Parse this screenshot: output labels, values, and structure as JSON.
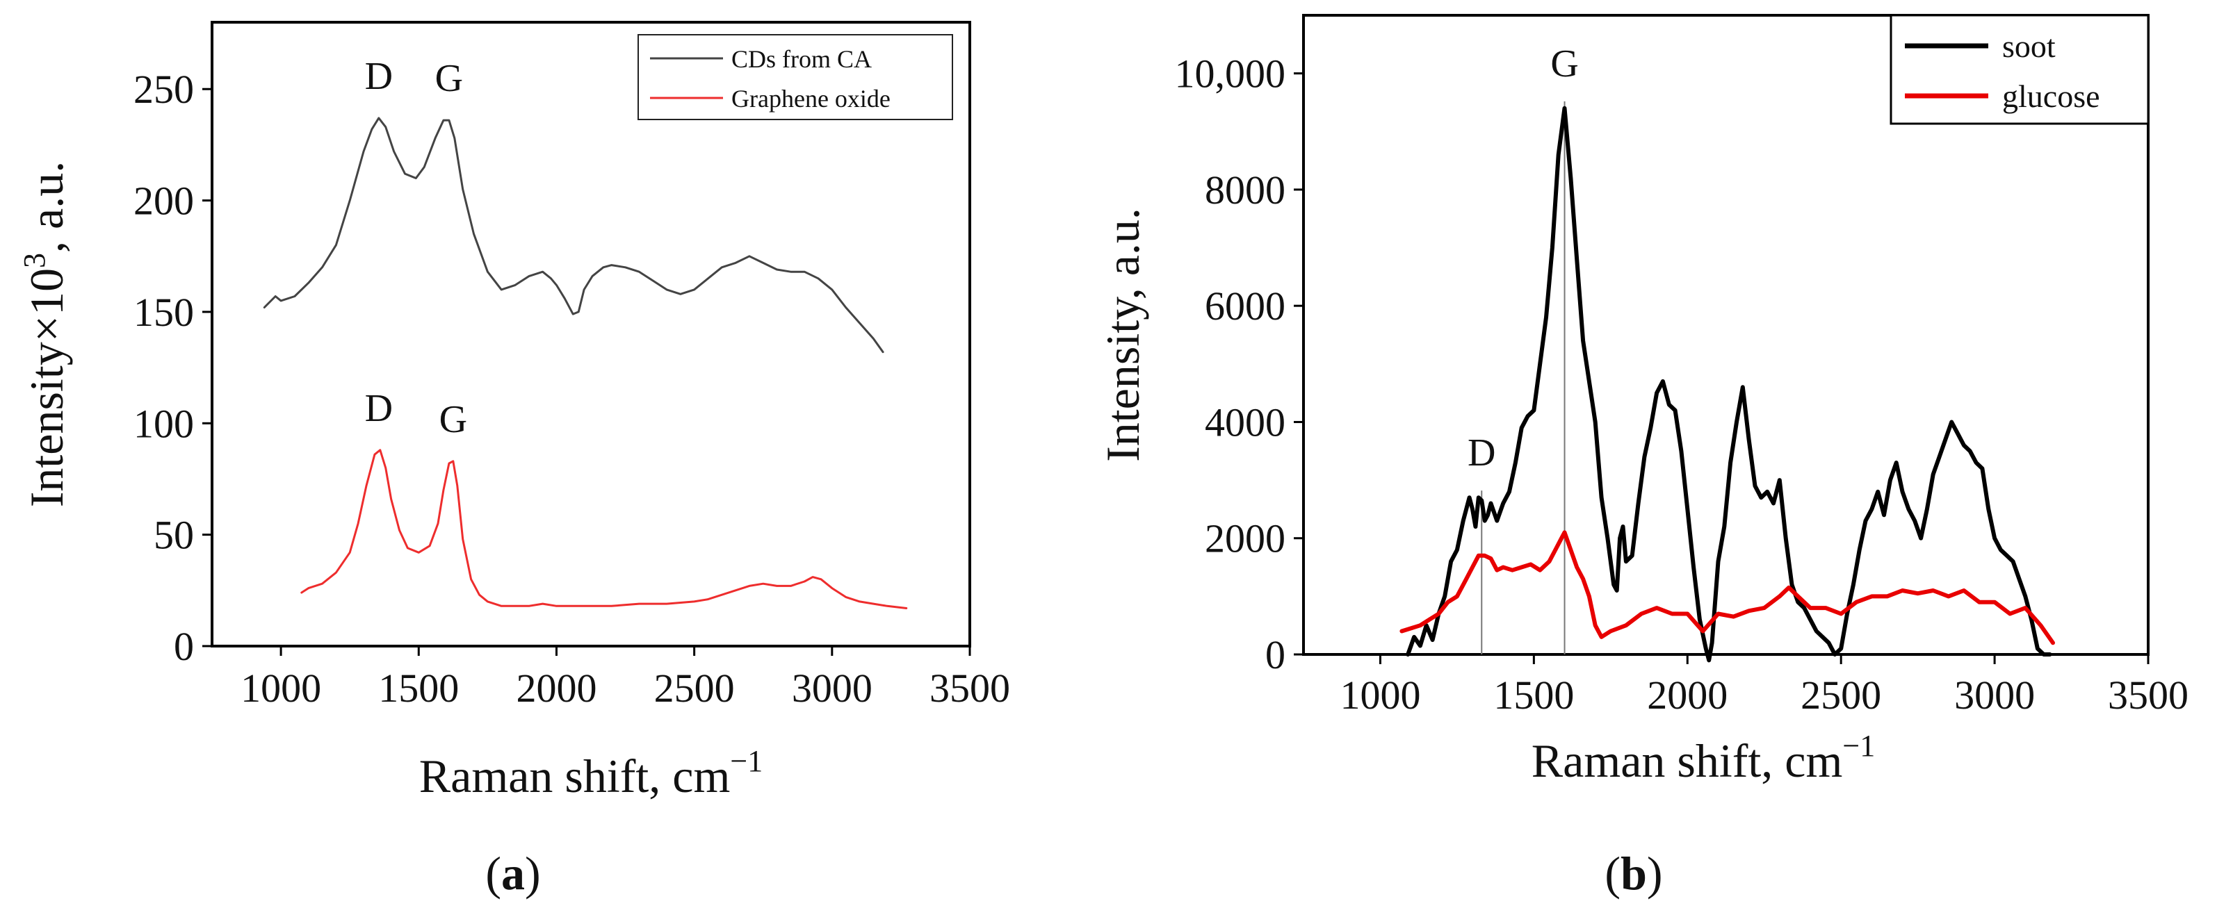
{
  "chart_data": [
    {
      "type": "line",
      "panel_label": "(a)",
      "caption_letter": "a",
      "xlabel": "Raman shift, cm",
      "xlabel_sup": "−1",
      "ylabel": "Intensity×10",
      "ylabel_sup": "3",
      "ylabel_tail": ", a.u.",
      "xlim": [
        750,
        3500
      ],
      "ylim": [
        0,
        280
      ],
      "xticks": [
        1000,
        1500,
        2000,
        2500,
        3000,
        3500
      ],
      "yticks": [
        0,
        50,
        100,
        150,
        200,
        250
      ],
      "legend_position": "top-right",
      "series": [
        {
          "name": "CDs from CA",
          "color": "#444444",
          "x": [
            940,
            980,
            1000,
            1050,
            1100,
            1150,
            1200,
            1250,
            1300,
            1330,
            1355,
            1380,
            1410,
            1450,
            1490,
            1520,
            1560,
            1590,
            1610,
            1630,
            1660,
            1700,
            1750,
            1800,
            1850,
            1900,
            1950,
            1980,
            2000,
            2030,
            2060,
            2080,
            2100,
            2130,
            2170,
            2200,
            2250,
            2300,
            2350,
            2400,
            2450,
            2500,
            2550,
            2600,
            2650,
            2700,
            2750,
            2800,
            2850,
            2900,
            2950,
            3000,
            3050,
            3100,
            3150,
            3185
          ],
          "values": [
            152,
            157,
            155,
            157,
            163,
            170,
            180,
            200,
            222,
            232,
            237,
            233,
            222,
            212,
            210,
            215,
            228,
            236,
            236,
            228,
            205,
            185,
            168,
            160,
            162,
            166,
            168,
            165,
            162,
            156,
            149,
            150,
            160,
            166,
            170,
            171,
            170,
            168,
            164,
            160,
            158,
            160,
            165,
            170,
            172,
            175,
            172,
            169,
            168,
            168,
            165,
            160,
            152,
            145,
            138,
            132
          ]
        },
        {
          "name": "Graphene oxide",
          "color": "#ee2d2d",
          "x": [
            1075,
            1100,
            1150,
            1200,
            1250,
            1280,
            1310,
            1340,
            1360,
            1380,
            1400,
            1430,
            1460,
            1500,
            1540,
            1570,
            1590,
            1610,
            1625,
            1640,
            1660,
            1690,
            1720,
            1750,
            1800,
            1850,
            1900,
            1950,
            2000,
            2100,
            2200,
            2300,
            2400,
            2500,
            2550,
            2600,
            2650,
            2700,
            2750,
            2800,
            2850,
            2900,
            2930,
            2960,
            3000,
            3050,
            3100,
            3150,
            3200,
            3270
          ],
          "values": [
            24,
            26,
            28,
            33,
            42,
            55,
            72,
            86,
            88,
            80,
            66,
            52,
            44,
            42,
            45,
            55,
            70,
            82,
            83,
            72,
            48,
            30,
            23,
            20,
            18,
            18,
            18,
            19,
            18,
            18,
            18,
            19,
            19,
            20,
            21,
            23,
            25,
            27,
            28,
            27,
            27,
            29,
            31,
            30,
            26,
            22,
            20,
            19,
            18,
            17
          ]
        }
      ],
      "annotations": [
        {
          "text": "D",
          "group": "top",
          "x": 1355,
          "y": 237
        },
        {
          "text": "G",
          "group": "top",
          "x": 1610,
          "y": 236
        },
        {
          "text": "D",
          "group": "bottom",
          "x": 1355,
          "y": 88
        },
        {
          "text": "G",
          "group": "bottom",
          "x": 1625,
          "y": 83
        }
      ]
    },
    {
      "type": "line",
      "panel_label": "(b)",
      "caption_letter": "b",
      "xlabel": "Raman shift, cm",
      "xlabel_sup": "−1",
      "ylabel": "Intensity, a.u.",
      "xlim": [
        750,
        3500
      ],
      "ylim": [
        0,
        11000
      ],
      "xticks": [
        1000,
        1500,
        2000,
        2500,
        3000,
        3500
      ],
      "yticks": [
        0,
        2000,
        4000,
        6000,
        8000,
        10000
      ],
      "ytick_labels": [
        "0",
        "2000",
        "4000",
        "6000",
        "8000",
        "10,000"
      ],
      "legend_position": "top-right",
      "series": [
        {
          "name": "soot",
          "color": "#000000",
          "x": [
            1090,
            1110,
            1130,
            1150,
            1170,
            1190,
            1210,
            1230,
            1250,
            1270,
            1290,
            1300,
            1310,
            1320,
            1330,
            1340,
            1350,
            1360,
            1380,
            1400,
            1420,
            1440,
            1460,
            1480,
            1500,
            1520,
            1540,
            1560,
            1580,
            1600,
            1620,
            1640,
            1660,
            1680,
            1700,
            1720,
            1740,
            1760,
            1770,
            1780,
            1790,
            1800,
            1820,
            1840,
            1860,
            1880,
            1900,
            1920,
            1940,
            1960,
            1980,
            2000,
            2020,
            2040,
            2060,
            2070,
            2080,
            2100,
            2120,
            2140,
            2160,
            2180,
            2200,
            2220,
            2240,
            2260,
            2280,
            2300,
            2320,
            2340,
            2360,
            2380,
            2400,
            2420,
            2440,
            2460,
            2480,
            2500,
            2520,
            2540,
            2560,
            2580,
            2600,
            2620,
            2640,
            2660,
            2680,
            2700,
            2720,
            2740,
            2760,
            2780,
            2800,
            2820,
            2840,
            2860,
            2880,
            2900,
            2920,
            2940,
            2960,
            2980,
            3000,
            3020,
            3040,
            3060,
            3080,
            3100,
            3120,
            3140,
            3160,
            3180
          ],
          "values": [
            0,
            300,
            150,
            500,
            250,
            700,
            1000,
            1600,
            1800,
            2300,
            2700,
            2500,
            2200,
            2700,
            2650,
            2300,
            2400,
            2600,
            2300,
            2600,
            2800,
            3300,
            3900,
            4100,
            4200,
            5000,
            5800,
            7000,
            8600,
            9400,
            8200,
            6800,
            5400,
            4700,
            4000,
            2700,
            2000,
            1200,
            1100,
            2000,
            2200,
            1600,
            1700,
            2600,
            3400,
            3900,
            4500,
            4700,
            4300,
            4200,
            3500,
            2500,
            1500,
            600,
            100,
            -100,
            200,
            1600,
            2200,
            3300,
            4000,
            4600,
            3700,
            2900,
            2700,
            2800,
            2600,
            3000,
            2000,
            1200,
            900,
            800,
            600,
            400,
            300,
            200,
            0,
            100,
            700,
            1200,
            1800,
            2300,
            2500,
            2800,
            2400,
            3000,
            3300,
            2800,
            2500,
            2300,
            2000,
            2500,
            3100,
            3400,
            3700,
            4000,
            3800,
            3600,
            3500,
            3300,
            3200,
            2500,
            2000,
            1800,
            1700,
            1600,
            1300,
            1000,
            600,
            100,
            0,
            0
          ]
        },
        {
          "name": "glucose",
          "color": "#e80000",
          "x": [
            1070,
            1100,
            1130,
            1160,
            1190,
            1220,
            1250,
            1280,
            1300,
            1320,
            1340,
            1360,
            1380,
            1400,
            1430,
            1460,
            1490,
            1520,
            1550,
            1570,
            1590,
            1600,
            1620,
            1640,
            1660,
            1680,
            1700,
            1720,
            1750,
            1800,
            1850,
            1900,
            1950,
            2000,
            2050,
            2100,
            2150,
            2200,
            2250,
            2300,
            2330,
            2360,
            2400,
            2450,
            2500,
            2550,
            2600,
            2650,
            2700,
            2750,
            2800,
            2850,
            2900,
            2950,
            3000,
            3050,
            3100,
            3150,
            3190
          ],
          "values": [
            400,
            450,
            500,
            600,
            700,
            900,
            1000,
            1300,
            1500,
            1700,
            1700,
            1650,
            1450,
            1500,
            1450,
            1500,
            1550,
            1450,
            1600,
            1800,
            2000,
            2100,
            1800,
            1500,
            1300,
            1000,
            500,
            300,
            400,
            500,
            700,
            800,
            700,
            700,
            400,
            700,
            650,
            750,
            800,
            1000,
            1150,
            1000,
            800,
            800,
            700,
            900,
            1000,
            1000,
            1100,
            1050,
            1100,
            1000,
            1100,
            900,
            900,
            700,
            800,
            500,
            200
          ]
        }
      ],
      "annotations": [
        {
          "text": "D",
          "x": 1330,
          "y": 2700
        },
        {
          "text": "G",
          "x": 1600,
          "y": 9400
        }
      ],
      "reference_lines": [
        1330,
        1600
      ]
    }
  ]
}
